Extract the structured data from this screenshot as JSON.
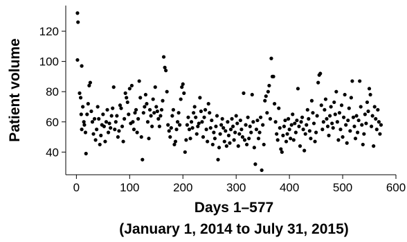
{
  "chart_data": {
    "type": "scatter",
    "title": "",
    "xlabel_line1": "Days 1–577",
    "xlabel_line2": "(January 1, 2014 to July 31, 2015)",
    "ylabel": "Patient volume",
    "xlim": [
      -20,
      600
    ],
    "ylim": [
      25,
      137
    ],
    "xticks": [
      0,
      100,
      200,
      300,
      400,
      500,
      600
    ],
    "yticks": [
      40,
      60,
      80,
      100,
      120
    ],
    "grid": false,
    "legend": "none",
    "marker_color": "#000000",
    "series": [
      {
        "points": [
          [
            2,
            132
          ],
          [
            3,
            126
          ],
          [
            2,
            101
          ],
          [
            10,
            97
          ],
          [
            6,
            79
          ],
          [
            8,
            76
          ],
          [
            9,
            65
          ],
          [
            10,
            55
          ],
          [
            12,
            70
          ],
          [
            14,
            60
          ],
          [
            15,
            58
          ],
          [
            17,
            53
          ],
          [
            18,
            39
          ],
          [
            20,
            65
          ],
          [
            22,
            72
          ],
          [
            24,
            84
          ],
          [
            26,
            86
          ],
          [
            28,
            67
          ],
          [
            30,
            60
          ],
          [
            32,
            52
          ],
          [
            34,
            62
          ],
          [
            36,
            48
          ],
          [
            38,
            55
          ],
          [
            40,
            70
          ],
          [
            42,
            62
          ],
          [
            44,
            45
          ],
          [
            46,
            51
          ],
          [
            48,
            58
          ],
          [
            50,
            65
          ],
          [
            52,
            57
          ],
          [
            54,
            47
          ],
          [
            56,
            60
          ],
          [
            58,
            68
          ],
          [
            60,
            53
          ],
          [
            62,
            59
          ],
          [
            64,
            56
          ],
          [
            66,
            64
          ],
          [
            68,
            69
          ],
          [
            70,
            83
          ],
          [
            72,
            55
          ],
          [
            74,
            60
          ],
          [
            76,
            64
          ],
          [
            78,
            50
          ],
          [
            80,
            54
          ],
          [
            82,
            71
          ],
          [
            84,
            69
          ],
          [
            86,
            57
          ],
          [
            88,
            47
          ],
          [
            90,
            62
          ],
          [
            92,
            79
          ],
          [
            94,
            76
          ],
          [
            96,
            73
          ],
          [
            98,
            65
          ],
          [
            100,
            82
          ],
          [
            102,
            59
          ],
          [
            104,
            84
          ],
          [
            106,
            60
          ],
          [
            108,
            55
          ],
          [
            110,
            66
          ],
          [
            112,
            68
          ],
          [
            114,
            53
          ],
          [
            116,
            62
          ],
          [
            118,
            87
          ],
          [
            120,
            76
          ],
          [
            122,
            50
          ],
          [
            124,
            35
          ],
          [
            126,
            66
          ],
          [
            128,
            70
          ],
          [
            130,
            78
          ],
          [
            132,
            72
          ],
          [
            134,
            60
          ],
          [
            136,
            49
          ],
          [
            138,
            68
          ],
          [
            140,
            64
          ],
          [
            142,
            57
          ],
          [
            144,
            75
          ],
          [
            146,
            66
          ],
          [
            148,
            83
          ],
          [
            150,
            70
          ],
          [
            152,
            67
          ],
          [
            154,
            62
          ],
          [
            156,
            57
          ],
          [
            158,
            64
          ],
          [
            160,
            68
          ],
          [
            162,
            74
          ],
          [
            164,
            103
          ],
          [
            166,
            96
          ],
          [
            168,
            94
          ],
          [
            170,
            80
          ],
          [
            172,
            58
          ],
          [
            174,
            54
          ],
          [
            176,
            50
          ],
          [
            178,
            56
          ],
          [
            180,
            64
          ],
          [
            182,
            68
          ],
          [
            184,
            45
          ],
          [
            186,
            47
          ],
          [
            188,
            55
          ],
          [
            190,
            60
          ],
          [
            192,
            66
          ],
          [
            194,
            58
          ],
          [
            196,
            75
          ],
          [
            198,
            83
          ],
          [
            200,
            85
          ],
          [
            202,
            79
          ],
          [
            204,
            40
          ],
          [
            206,
            48
          ],
          [
            208,
            58
          ],
          [
            210,
            63
          ],
          [
            212,
            55
          ],
          [
            214,
            49
          ],
          [
            216,
            60
          ],
          [
            218,
            56
          ],
          [
            220,
            66
          ],
          [
            222,
            70
          ],
          [
            224,
            63
          ],
          [
            226,
            52
          ],
          [
            228,
            57
          ],
          [
            230,
            59
          ],
          [
            232,
            76
          ],
          [
            234,
            67
          ],
          [
            236,
            60
          ],
          [
            238,
            50
          ],
          [
            240,
            63
          ],
          [
            242,
            68
          ],
          [
            244,
            55
          ],
          [
            246,
            47
          ],
          [
            248,
            72
          ],
          [
            250,
            66
          ],
          [
            252,
            56
          ],
          [
            254,
            61
          ],
          [
            256,
            45
          ],
          [
            258,
            53
          ],
          [
            260,
            49
          ],
          [
            262,
            57
          ],
          [
            264,
            64
          ],
          [
            266,
            35
          ],
          [
            268,
            43
          ],
          [
            270,
            52
          ],
          [
            272,
            58
          ],
          [
            274,
            62
          ],
          [
            276,
            56
          ],
          [
            278,
            47
          ],
          [
            280,
            54
          ],
          [
            282,
            44
          ],
          [
            284,
            60
          ],
          [
            286,
            51
          ],
          [
            288,
            46
          ],
          [
            290,
            55
          ],
          [
            292,
            62
          ],
          [
            294,
            57
          ],
          [
            296,
            48
          ],
          [
            298,
            53
          ],
          [
            300,
            64
          ],
          [
            302,
            59
          ],
          [
            304,
            44
          ],
          [
            306,
            52
          ],
          [
            308,
            61
          ],
          [
            310,
            55
          ],
          [
            312,
            50
          ],
          [
            314,
            79
          ],
          [
            316,
            48
          ],
          [
            318,
            58
          ],
          [
            320,
            45
          ],
          [
            322,
            63
          ],
          [
            324,
            49
          ],
          [
            326,
            57
          ],
          [
            328,
            53
          ],
          [
            330,
            78
          ],
          [
            332,
            60
          ],
          [
            334,
            43
          ],
          [
            336,
            32
          ],
          [
            338,
            55
          ],
          [
            340,
            61
          ],
          [
            342,
            49
          ],
          [
            344,
            53
          ],
          [
            346,
            63
          ],
          [
            348,
            28
          ],
          [
            350,
            58
          ],
          [
            352,
            45
          ],
          [
            354,
            74
          ],
          [
            356,
            77
          ],
          [
            358,
            66
          ],
          [
            360,
            80
          ],
          [
            362,
            84
          ],
          [
            364,
            62
          ],
          [
            366,
            102
          ],
          [
            368,
            90
          ],
          [
            370,
            90
          ],
          [
            372,
            72
          ],
          [
            374,
            60
          ],
          [
            376,
            52
          ],
          [
            378,
            48
          ],
          [
            380,
            69
          ],
          [
            382,
            56
          ],
          [
            384,
            42
          ],
          [
            386,
            40
          ],
          [
            388,
            51
          ],
          [
            390,
            57
          ],
          [
            392,
            61
          ],
          [
            394,
            47
          ],
          [
            396,
            52
          ],
          [
            398,
            62
          ],
          [
            400,
            55
          ],
          [
            402,
            49
          ],
          [
            404,
            58
          ],
          [
            406,
            65
          ],
          [
            408,
            48
          ],
          [
            410,
            59
          ],
          [
            412,
            53
          ],
          [
            414,
            61
          ],
          [
            416,
            82
          ],
          [
            418,
            57
          ],
          [
            420,
            44
          ],
          [
            422,
            60
          ],
          [
            424,
            63
          ],
          [
            426,
            55
          ],
          [
            428,
            41
          ],
          [
            430,
            52
          ],
          [
            432,
            58
          ],
          [
            434,
            68
          ],
          [
            436,
            62
          ],
          [
            438,
            54
          ],
          [
            440,
            49
          ],
          [
            442,
            74
          ],
          [
            444,
            66
          ],
          [
            446,
            59
          ],
          [
            448,
            47
          ],
          [
            450,
            53
          ],
          [
            452,
            64
          ],
          [
            454,
            86
          ],
          [
            456,
            91
          ],
          [
            458,
            92
          ],
          [
            460,
            71
          ],
          [
            462,
            55
          ],
          [
            464,
            60
          ],
          [
            466,
            68
          ],
          [
            468,
            75
          ],
          [
            470,
            62
          ],
          [
            472,
            57
          ],
          [
            474,
            51
          ],
          [
            476,
            64
          ],
          [
            478,
            70
          ],
          [
            480,
            59
          ],
          [
            482,
            56
          ],
          [
            484,
            73
          ],
          [
            486,
            65
          ],
          [
            488,
            80
          ],
          [
            490,
            60
          ],
          [
            492,
            48
          ],
          [
            494,
            66
          ],
          [
            496,
            55
          ],
          [
            498,
            71
          ],
          [
            500,
            50
          ],
          [
            502,
            63
          ],
          [
            504,
            78
          ],
          [
            506,
            58
          ],
          [
            508,
            46
          ],
          [
            510,
            61
          ],
          [
            512,
            69
          ],
          [
            514,
            54
          ],
          [
            516,
            76
          ],
          [
            518,
            87
          ],
          [
            520,
            63
          ],
          [
            522,
            57
          ],
          [
            524,
            49
          ],
          [
            526,
            64
          ],
          [
            528,
            53
          ],
          [
            530,
            61
          ],
          [
            532,
            87
          ],
          [
            534,
            70
          ],
          [
            536,
            58
          ],
          [
            538,
            45
          ],
          [
            540,
            52
          ],
          [
            542,
            65
          ],
          [
            544,
            59
          ],
          [
            546,
            73
          ],
          [
            548,
            67
          ],
          [
            550,
            82
          ],
          [
            552,
            78
          ],
          [
            554,
            57
          ],
          [
            556,
            64
          ],
          [
            558,
            44
          ],
          [
            560,
            70
          ],
          [
            562,
            62
          ],
          [
            564,
            55
          ],
          [
            566,
            68
          ],
          [
            568,
            60
          ],
          [
            570,
            52
          ],
          [
            572,
            58
          ]
        ]
      }
    ]
  }
}
